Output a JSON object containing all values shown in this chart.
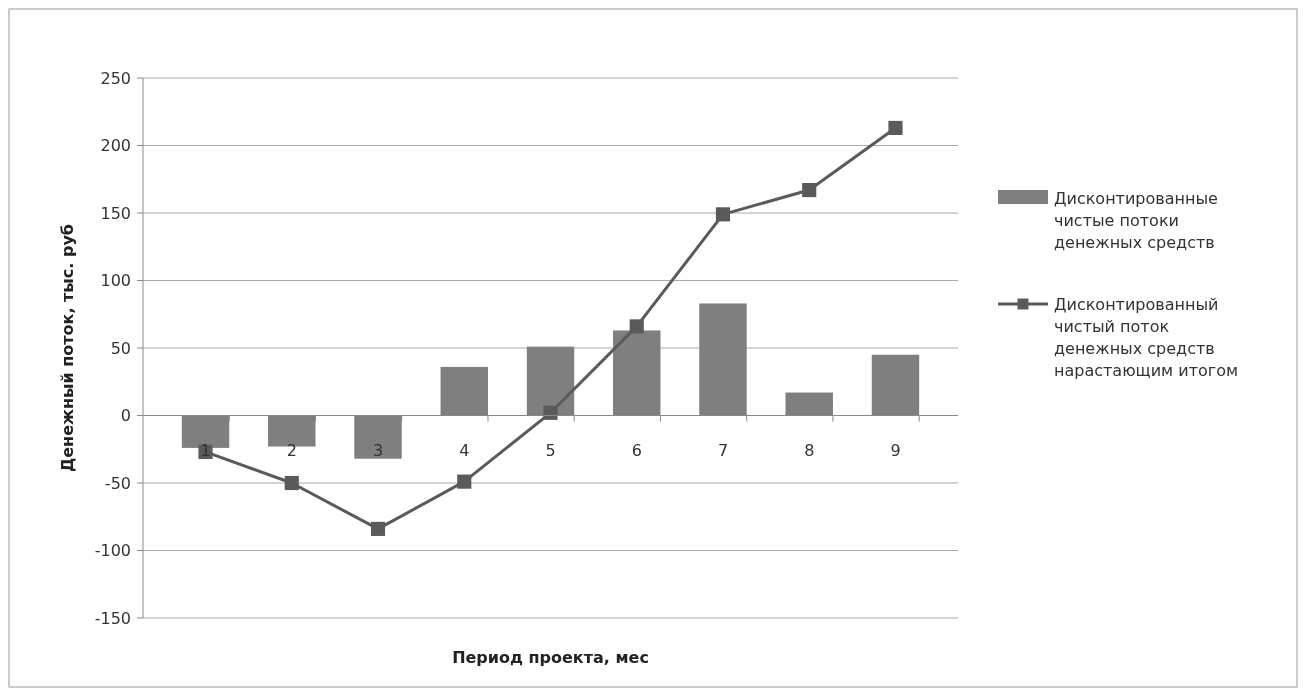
{
  "chart_data": {
    "type": "bar",
    "xlabel": "Период проекта, мес",
    "ylabel": "Денежный поток, тыс. руб",
    "categories": [
      "1",
      "2",
      "3",
      "4",
      "5",
      "6",
      "7",
      "8",
      "9"
    ],
    "series": [
      {
        "name": "Дисконтированные чистые потоки денежных средств",
        "color": "#7f7f7f",
        "values": [
          -24,
          -23,
          -32,
          36,
          51,
          63,
          83,
          17,
          45
        ]
      },
      {
        "name": "Дисконтированный чистый поток денежных средств нарастающим итогом",
        "type": "line",
        "color": "#5a5a5a",
        "marker": "square",
        "values": [
          -27,
          -50,
          -84,
          -49,
          2,
          66,
          149,
          167,
          213
        ]
      }
    ],
    "ylim": [
      -150,
      250
    ],
    "yticks": [
      -150,
      -100,
      -50,
      0,
      50,
      100,
      150,
      200,
      250
    ],
    "grid": "y",
    "legend": "right"
  }
}
